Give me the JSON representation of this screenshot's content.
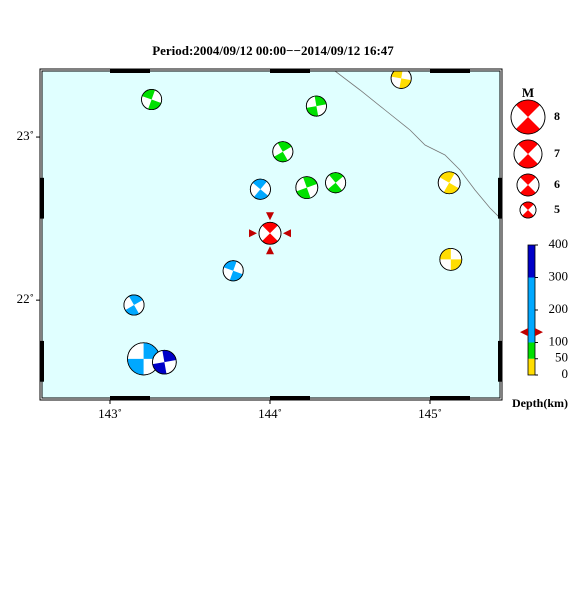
{
  "map": {
    "title": "Period:2004/09/12 00:00−−2014/09/12 16:47",
    "xlim": [
      142.575,
      145.4375
    ],
    "ylim": [
      21.4,
      23.405
    ],
    "xticks": [
      {
        "value": 143,
        "label": "143˚"
      },
      {
        "value": 144,
        "label": "144˚"
      },
      {
        "value": 145,
        "label": "145˚"
      }
    ],
    "yticks": [
      {
        "value": 22,
        "label": "22˚"
      },
      {
        "value": 23,
        "label": "23˚"
      }
    ],
    "background": "#e0ffff",
    "events": [
      {
        "lon": 143.26,
        "lat": 23.23,
        "depth": 70,
        "mag": 5.7,
        "strike": 20
      },
      {
        "lon": 144.29,
        "lat": 23.19,
        "depth": 70,
        "mag": 5.7,
        "strike": 80
      },
      {
        "lon": 144.82,
        "lat": 23.36,
        "depth": 20,
        "mag": 5.7,
        "strike": 10
      },
      {
        "lon": 144.08,
        "lat": 22.91,
        "depth": 70,
        "mag": 5.7,
        "strike": 60
      },
      {
        "lon": 143.94,
        "lat": 22.68,
        "depth": 150,
        "mag": 5.7,
        "strike": 40
      },
      {
        "lon": 144.23,
        "lat": 22.69,
        "depth": 70,
        "mag": 6.0,
        "strike": 70
      },
      {
        "lon": 144.41,
        "lat": 22.72,
        "depth": 70,
        "mag": 5.7,
        "strike": 50
      },
      {
        "lon": 145.12,
        "lat": 22.72,
        "depth": 20,
        "mag": 6.0,
        "strike": 30
      },
      {
        "lon": 145.13,
        "lat": 22.25,
        "depth": 20,
        "mag": 6.0,
        "strike": 0
      },
      {
        "lon": 143.77,
        "lat": 22.18,
        "depth": 150,
        "mag": 5.7,
        "strike": 20
      },
      {
        "lon": 143.15,
        "lat": 21.97,
        "depth": 200,
        "mag": 5.7,
        "strike": 60
      },
      {
        "lon": 143.21,
        "lat": 21.64,
        "depth": 220,
        "mag": 7.7,
        "strike": 90
      },
      {
        "lon": 143.34,
        "lat": 21.62,
        "depth": 350,
        "mag": 6.3,
        "strike": 80
      }
    ],
    "target": {
      "lon": 144.0,
      "lat": 22.41,
      "depth": 132,
      "mag": 6.0,
      "strike": 45,
      "color": "#ff0000"
    },
    "mag_legend": {
      "title": "M",
      "color": "#ff0000",
      "entries": [
        {
          "mag": 8,
          "label": "8"
        },
        {
          "mag": 7,
          "label": "7"
        },
        {
          "mag": 6,
          "label": "6"
        },
        {
          "mag": 5,
          "label": "5"
        }
      ]
    },
    "depth_scale": {
      "label": "Depth(km)",
      "lim": [
        0,
        400
      ],
      "ticks": [
        400,
        300,
        200,
        100,
        50,
        0
      ],
      "bands": [
        {
          "from": 0,
          "to": 50,
          "color": "#ffdd00"
        },
        {
          "from": 50,
          "to": 100,
          "color": "#00e000"
        },
        {
          "from": 100,
          "to": 300,
          "color": "#00a8ff"
        },
        {
          "from": 300,
          "to": 400,
          "color": "#0000c8"
        }
      ]
    }
  }
}
